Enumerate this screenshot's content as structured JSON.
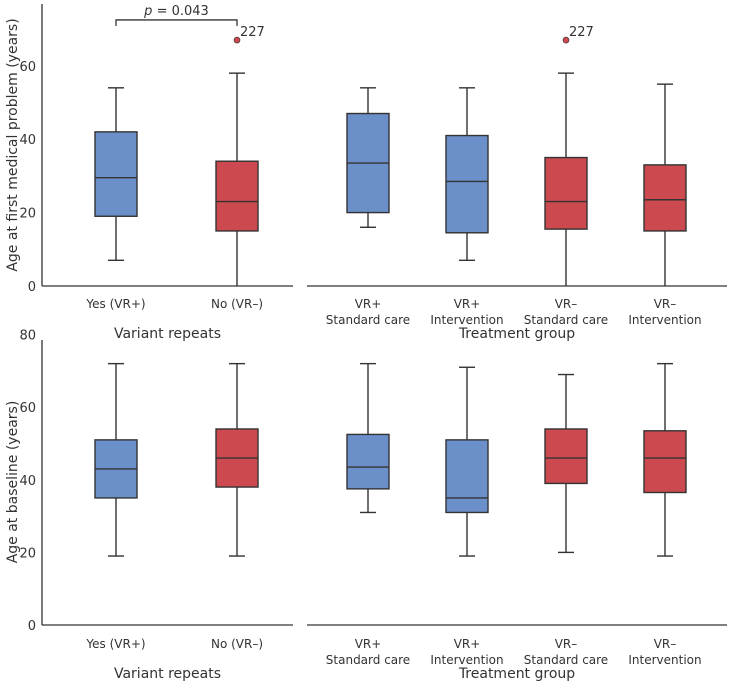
{
  "chart_data": [
    {
      "type": "box",
      "panel": "top-left",
      "ylabel": "Age at first medical problem (years)",
      "xlabel": "Variant repeats",
      "ylim": [
        0,
        77
      ],
      "yticks": [
        0,
        20,
        40,
        60
      ],
      "annotation": {
        "prefix": "p",
        "text": " = 0.043"
      },
      "boxes": [
        {
          "label": [
            "Yes (VR+)"
          ],
          "color": "#6b8fc9",
          "min": 7,
          "q1": 19,
          "median": 29.5,
          "q3": 42,
          "max": 54
        },
        {
          "label": [
            "No (VR–)"
          ],
          "color": "#cc4a4f",
          "min": 0,
          "q1": 15,
          "median": 23,
          "q3": 34,
          "max": 58,
          "outliers": [
            {
              "value": 67,
              "label": "227"
            }
          ]
        }
      ]
    },
    {
      "type": "box",
      "panel": "top-right",
      "xlabel": "Treatment group",
      "ylim": [
        0,
        77
      ],
      "boxes": [
        {
          "label": [
            "VR+",
            "Standard care"
          ],
          "color": "#6b8fc9",
          "min": 16,
          "q1": 20,
          "median": 33.5,
          "q3": 47,
          "max": 54
        },
        {
          "label": [
            "VR+",
            "Intervention"
          ],
          "color": "#6b8fc9",
          "min": 7,
          "q1": 14.5,
          "median": 28.5,
          "q3": 41,
          "max": 54
        },
        {
          "label": [
            "VR–",
            "Standard care"
          ],
          "color": "#cc4a4f",
          "min": 0,
          "q1": 15.5,
          "median": 23,
          "q3": 35,
          "max": 58,
          "outliers": [
            {
              "value": 67,
              "label": "227"
            }
          ]
        },
        {
          "label": [
            "VR–",
            "Intervention"
          ],
          "color": "#cc4a4f",
          "min": 0,
          "q1": 15,
          "median": 23.5,
          "q3": 33,
          "max": 55
        }
      ]
    },
    {
      "type": "box",
      "panel": "bottom-left",
      "ylabel": "Age at baseline (years)",
      "xlabel": "Variant repeats",
      "ylim": [
        0,
        88
      ],
      "yticks": [
        0,
        20,
        40,
        60,
        80
      ],
      "boxes": [
        {
          "label": [
            "Yes (VR+)"
          ],
          "color": "#6b8fc9",
          "min": 19,
          "q1": 35,
          "median": 43,
          "q3": 51,
          "max": 72
        },
        {
          "label": [
            "No (VR–)"
          ],
          "color": "#cc4a4f",
          "min": 19,
          "q1": 38,
          "median": 46,
          "q3": 54,
          "max": 72
        }
      ]
    },
    {
      "type": "box",
      "panel": "bottom-right",
      "xlabel": "Treatment group",
      "ylim": [
        0,
        88
      ],
      "boxes": [
        {
          "label": [
            "VR+",
            "Standard care"
          ],
          "color": "#6b8fc9",
          "min": 31,
          "q1": 37.5,
          "median": 43.5,
          "q3": 52.5,
          "max": 72
        },
        {
          "label": [
            "VR+",
            "Intervention"
          ],
          "color": "#6b8fc9",
          "min": 19,
          "q1": 31,
          "median": 35,
          "q3": 51,
          "max": 71
        },
        {
          "label": [
            "VR–",
            "Standard care"
          ],
          "color": "#cc4a4f",
          "min": 20,
          "q1": 39,
          "median": 46,
          "q3": 54,
          "max": 69
        },
        {
          "label": [
            "VR–",
            "Intervention"
          ],
          "color": "#cc4a4f",
          "min": 19,
          "q1": 36.5,
          "median": 46,
          "q3": 53.5,
          "max": 72
        }
      ]
    }
  ]
}
